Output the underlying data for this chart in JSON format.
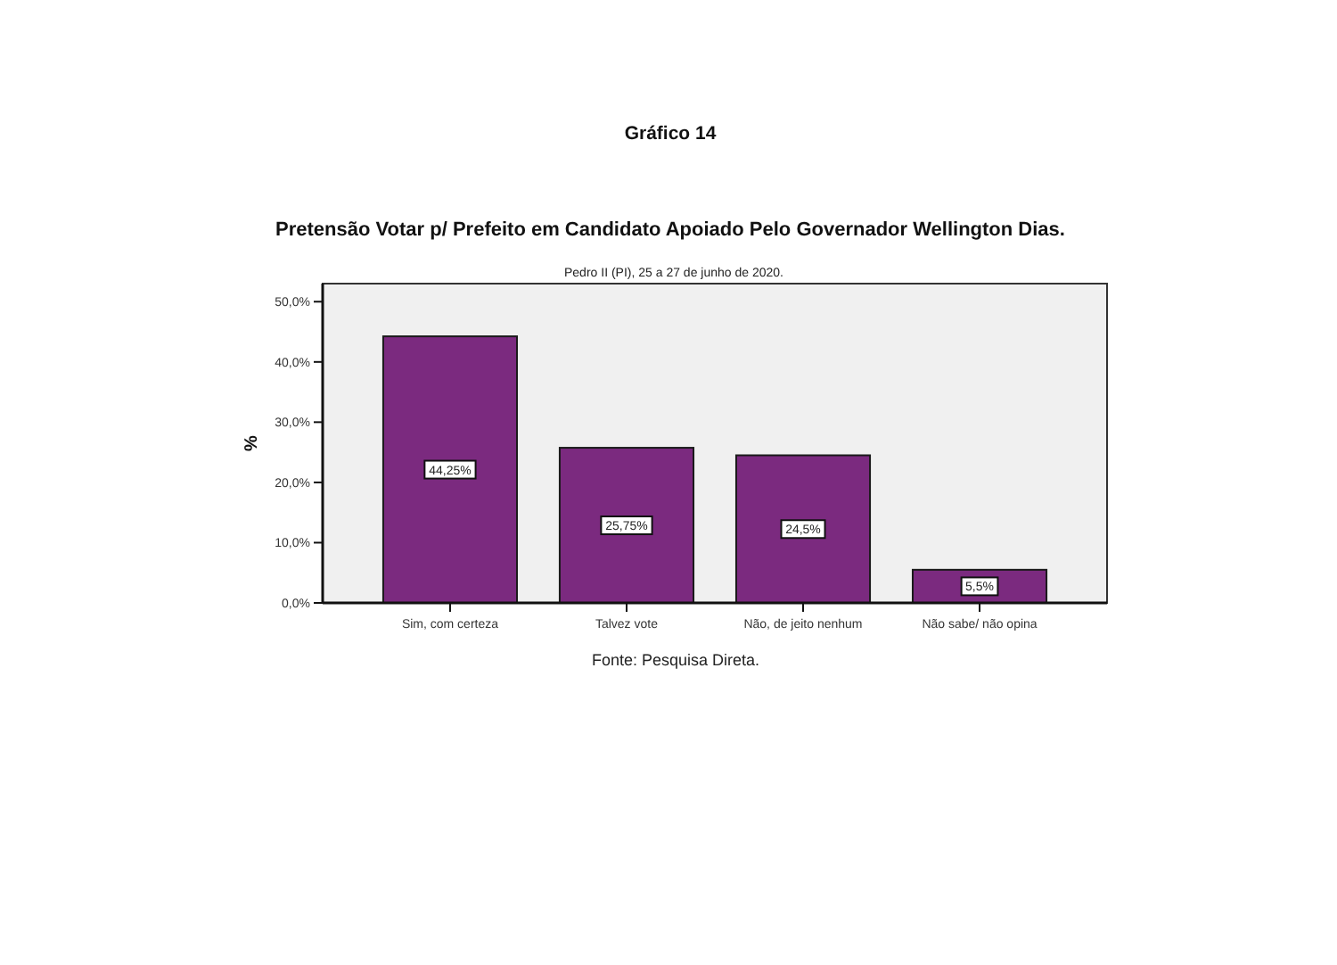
{
  "chart_data": {
    "type": "bar",
    "title": "Pretensão Votar p/ Prefeito em Candidato Apoiado Pelo Governador Wellington Dias.",
    "subtitle": "Pedro II (PI), 25 a 27 de junho de 2020.",
    "ylabel": "%",
    "annotations": [
      "Gráfico 14",
      "Fonte: Pesquisa Direta."
    ],
    "categories": [
      "Sim, com certeza",
      "Talvez vote",
      "Não, de jeito nenhum",
      "Não sabe/ não opina"
    ],
    "values": [
      44.25,
      25.75,
      24.5,
      5.5
    ],
    "value_labels": [
      "44,25%",
      "25,75%",
      "24,5%",
      "5,5%"
    ],
    "color": "#7b2a7f",
    "ylim": [
      0,
      53
    ],
    "yticks": [
      {
        "value": 0,
        "label": "0,0%"
      },
      {
        "value": 10,
        "label": "10,0%"
      },
      {
        "value": 20,
        "label": "20,0%"
      },
      {
        "value": 30,
        "label": "30,0%"
      },
      {
        "value": 40,
        "label": "40,0%"
      },
      {
        "value": 50,
        "label": "50,0%"
      }
    ]
  }
}
